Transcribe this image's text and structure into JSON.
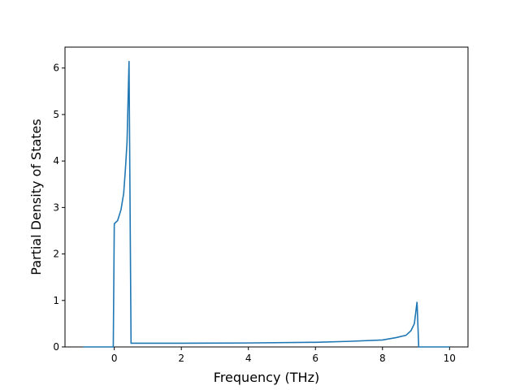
{
  "chart_data": {
    "type": "line",
    "x_label": "Frequency (THz)",
    "y_label": "Partial Density of States",
    "x": [
      -0.92,
      -0.03,
      0.0,
      0.1,
      0.2,
      0.28,
      0.33,
      0.38,
      0.44,
      0.5,
      2.0,
      4.0,
      6.0,
      7.0,
      8.0,
      8.4,
      8.7,
      8.85,
      8.95,
      9.03,
      9.08,
      10.0
    ],
    "series": [
      {
        "color": "#1f77b4",
        "values": [
          0,
          0,
          2.65,
          2.72,
          2.95,
          3.3,
          3.8,
          4.4,
          6.15,
          0.08,
          0.08,
          0.085,
          0.1,
          0.12,
          0.15,
          0.2,
          0.25,
          0.35,
          0.5,
          0.97,
          0,
          0
        ]
      }
    ],
    "xlim": [
      -1.47,
      10.55
    ],
    "ylim": [
      0,
      6.45
    ],
    "xticks": [
      0,
      2,
      4,
      6,
      8,
      10
    ],
    "yticks": [
      0,
      1,
      2,
      3,
      4,
      5,
      6
    ]
  }
}
